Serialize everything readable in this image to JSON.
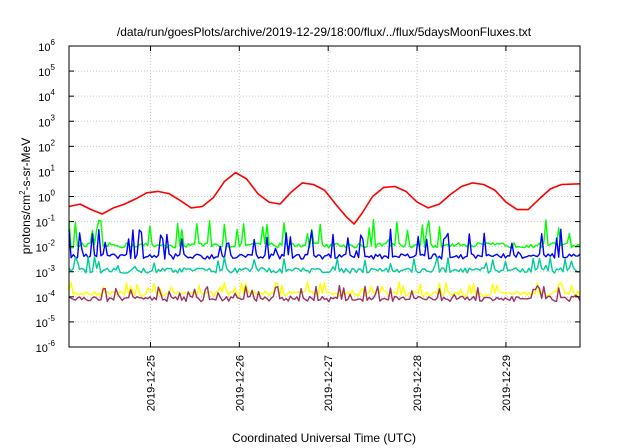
{
  "chart_data": {
    "type": "line",
    "title": "/data/run/goesPlots/archive/2019-12-29/18:00/flux/../flux/5daysMoonFluxes.txt",
    "xlabel": "Coordinated Universal Time (UTC)",
    "ylabel": "protons/cm2-s-sr-MeV",
    "ylabel_parts": {
      "base": "protons/cm",
      "sup": "2",
      "rest": "-s-sr-MeV"
    },
    "y_scale": "log",
    "ylim": [
      1e-06,
      1000000.0
    ],
    "y_ticks": [
      {
        "value": 1e-06,
        "base": "10",
        "exp": "-6"
      },
      {
        "value": 1e-05,
        "base": "10",
        "exp": "-5"
      },
      {
        "value": 0.0001,
        "base": "10",
        "exp": "-4"
      },
      {
        "value": 0.001,
        "base": "10",
        "exp": "-3"
      },
      {
        "value": 0.01,
        "base": "10",
        "exp": "-2"
      },
      {
        "value": 0.1,
        "base": "10",
        "exp": "-1"
      },
      {
        "value": 1,
        "base": "10",
        "exp": "0"
      },
      {
        "value": 10.0,
        "base": "10",
        "exp": "1"
      },
      {
        "value": 100.0,
        "base": "10",
        "exp": "2"
      },
      {
        "value": 1000.0,
        "base": "10",
        "exp": "3"
      },
      {
        "value": 10000.0,
        "base": "10",
        "exp": "4"
      },
      {
        "value": 100000.0,
        "base": "10",
        "exp": "5"
      },
      {
        "value": 1000000.0,
        "base": "10",
        "exp": "6"
      }
    ],
    "xlim": [
      "2019-12-24 02:00",
      "2019-12-29 20:00"
    ],
    "x_ticks": [
      "2019-12-25",
      "2019-12-26",
      "2019-12-27",
      "2019-12-28",
      "2019-12-29"
    ],
    "grid": true,
    "legend": "none",
    "series": [
      {
        "color": "#ff0000",
        "values": [
          [
            "2019-12-24 02:00",
            0.4
          ],
          [
            "2019-12-24 05:00",
            0.5
          ],
          [
            "2019-12-24 08:00",
            0.3
          ],
          [
            "2019-12-24 11:00",
            0.2
          ],
          [
            "2019-12-24 14:00",
            0.35
          ],
          [
            "2019-12-24 17:00",
            0.5
          ],
          [
            "2019-12-24 20:00",
            0.8
          ],
          [
            "2019-12-24 23:00",
            1.4
          ],
          [
            "2019-12-25 02:00",
            1.6
          ],
          [
            "2019-12-25 05:00",
            1.3
          ],
          [
            "2019-12-25 08:00",
            0.7
          ],
          [
            "2019-12-25 11:00",
            0.35
          ],
          [
            "2019-12-25 14:00",
            0.4
          ],
          [
            "2019-12-25 17:00",
            0.9
          ],
          [
            "2019-12-25 20:00",
            4
          ],
          [
            "2019-12-25 23:00",
            9
          ],
          [
            "2019-12-26 02:00",
            5
          ],
          [
            "2019-12-26 05:00",
            1.3
          ],
          [
            "2019-12-26 08:00",
            0.6
          ],
          [
            "2019-12-26 11:00",
            0.5
          ],
          [
            "2019-12-26 14:00",
            1.5
          ],
          [
            "2019-12-26 17:00",
            3.5
          ],
          [
            "2019-12-26 20:00",
            3
          ],
          [
            "2019-12-26 23:00",
            1.8
          ],
          [
            "2019-12-27 02:00",
            0.5
          ],
          [
            "2019-12-27 05:00",
            0.15
          ],
          [
            "2019-12-27 07:00",
            0.08
          ],
          [
            "2019-12-27 09:00",
            0.2
          ],
          [
            "2019-12-27 12:00",
            1
          ],
          [
            "2019-12-27 15:00",
            2.3
          ],
          [
            "2019-12-27 18:00",
            2.5
          ],
          [
            "2019-12-27 21:00",
            1.6
          ],
          [
            "2019-12-28 00:00",
            0.6
          ],
          [
            "2019-12-28 03:00",
            0.35
          ],
          [
            "2019-12-28 06:00",
            0.5
          ],
          [
            "2019-12-28 09:00",
            1.2
          ],
          [
            "2019-12-28 12:00",
            2.5
          ],
          [
            "2019-12-28 15:00",
            3.5
          ],
          [
            "2019-12-28 18:00",
            3
          ],
          [
            "2019-12-28 21:00",
            1.8
          ],
          [
            "2019-12-29 00:00",
            0.6
          ],
          [
            "2019-12-29 03:00",
            0.3
          ],
          [
            "2019-12-29 06:00",
            0.3
          ],
          [
            "2019-12-29 09:00",
            0.8
          ],
          [
            "2019-12-29 12:00",
            2
          ],
          [
            "2019-12-29 15:00",
            3
          ],
          [
            "2019-12-29 20:00",
            3.2
          ]
        ]
      },
      {
        "color": "#00ff00",
        "baseline": 0.011,
        "noise": "spiky",
        "peak": 0.12
      },
      {
        "color": "#0000ff",
        "baseline": 0.004,
        "noise": "spiky",
        "peak": 0.05
      },
      {
        "color": "#00cc99",
        "baseline": 0.0011,
        "noise": "low",
        "peak": 0.004
      },
      {
        "color": "#ffff00",
        "baseline": 0.00013,
        "noise": "spiky",
        "peak": 0.0004
      },
      {
        "color": "#993366",
        "baseline": 8e-05,
        "noise": "spiky",
        "peak": 0.00028
      }
    ]
  }
}
